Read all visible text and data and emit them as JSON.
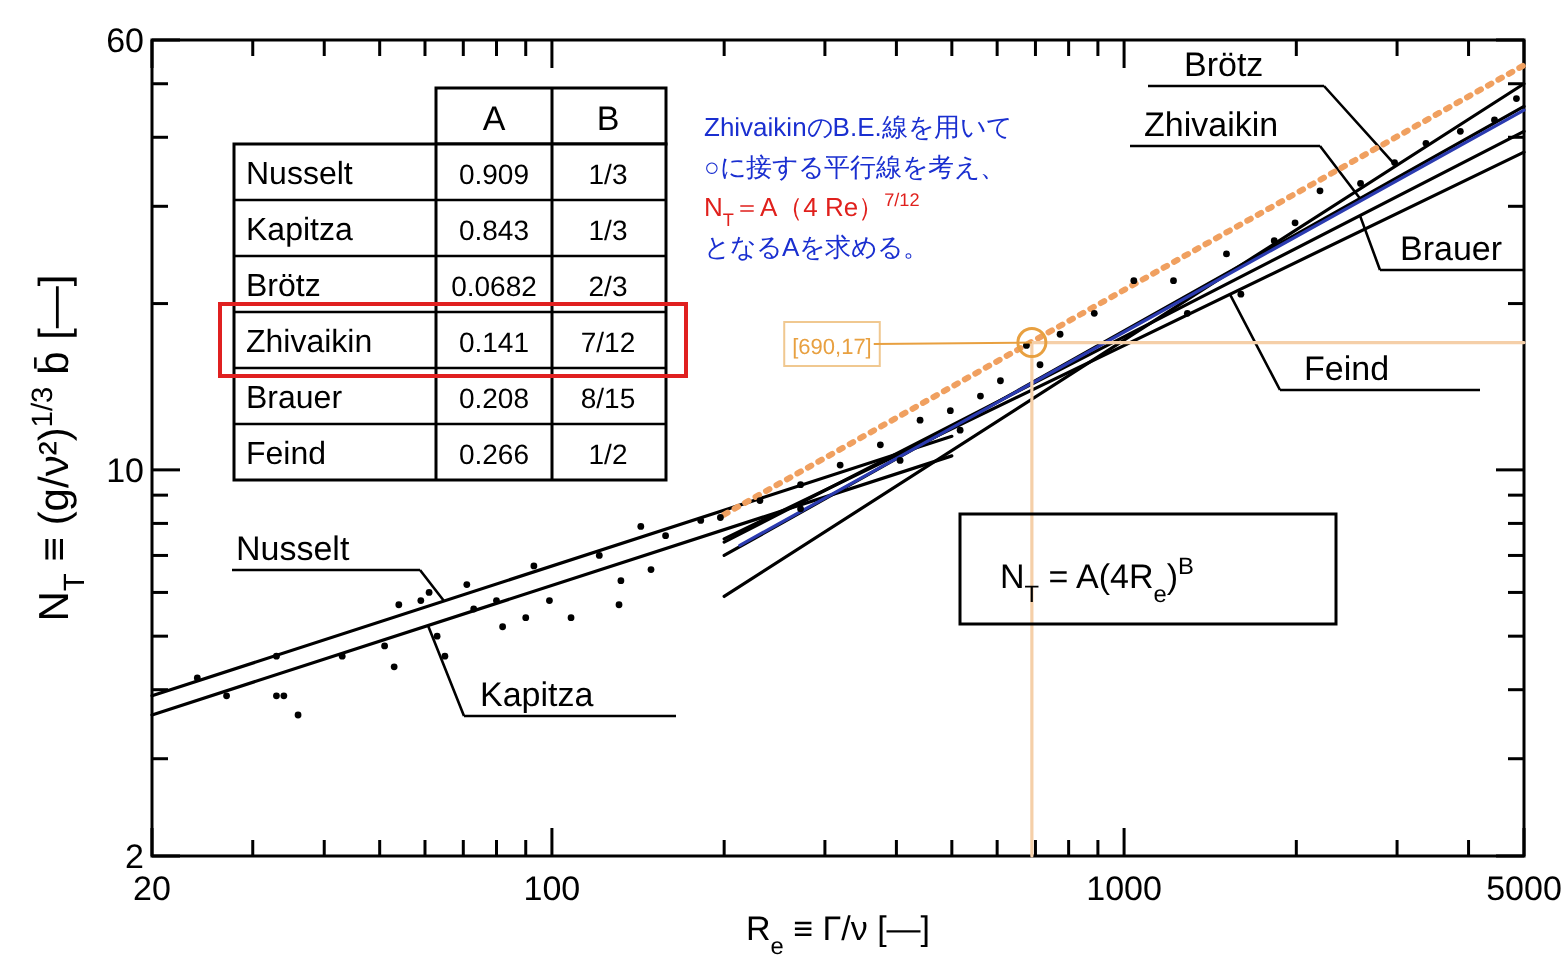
{
  "chart_data": {
    "type": "line",
    "xlabel": "R$_{e}$ ≡ Γ/ν [—]",
    "ylabel": "N$_{T}$ ≡ (g/ν²)$^{1/3}$ b̄ [—]",
    "log": "xy",
    "xlim": [
      20,
      5000
    ],
    "ylim": [
      2,
      60
    ],
    "grid": false,
    "legend": "top right",
    "xticks": [
      20,
      {
        "value": 30,
        "label": null
      },
      {
        "value": 40,
        "label": null
      },
      {
        "value": 50,
        "label": null
      },
      {
        "value": 60,
        "label": null
      },
      {
        "value": 70,
        "label": null
      },
      {
        "value": 80,
        "label": null
      },
      {
        "value": 90,
        "label": null
      },
      100,
      {
        "value": 200,
        "label": null
      },
      {
        "value": 300,
        "label": null
      },
      {
        "value": 400,
        "label": null
      },
      {
        "value": 500,
        "label": null
      },
      {
        "value": 600,
        "label": null
      },
      {
        "value": 700,
        "label": null
      },
      {
        "value": 800,
        "label": null
      },
      {
        "value": 900,
        "label": null
      },
      1000,
      {
        "value": 2000,
        "label": null
      },
      {
        "value": 3000,
        "label": null
      },
      {
        "value": 4000,
        "label": null
      },
      5000
    ],
    "yticks": [
      2,
      {
        "value": 3,
        "label": null
      },
      {
        "value": 4,
        "label": null
      },
      {
        "value": 5,
        "label": null
      },
      {
        "value": 6,
        "label": null
      },
      {
        "value": 7,
        "label": null
      },
      {
        "value": 8,
        "label": null
      },
      {
        "value": 9,
        "label": null
      },
      10,
      {
        "value": 20,
        "label": null
      },
      {
        "value": 30,
        "label": null
      },
      {
        "value": 40,
        "label": null
      },
      {
        "value": 50,
        "label": null
      },
      60
    ],
    "series": [
      {
        "name": "Nusselt",
        "color": "#000000",
        "x": [
          20,
          500
        ],
        "values": [
          3.9,
          11.5
        ]
      },
      {
        "name": "Kapitza",
        "color": "#000000",
        "x": [
          20,
          500
        ],
        "values": [
          3.6,
          10.6
        ]
      },
      {
        "name": "Brötz",
        "color": "#000000",
        "x": [
          200,
          5000
        ],
        "values": [
          5.9,
          50
        ]
      },
      {
        "name": "Zhivaikin",
        "color": "#000000",
        "x": [
          200,
          5000
        ],
        "values": [
          7,
          45.5
        ]
      },
      {
        "name": "Brauer",
        "color": "#000000",
        "x": [
          200,
          5000
        ],
        "values": [
          7.4,
          41
        ]
      },
      {
        "name": "Feind",
        "color": "#000000",
        "x": [
          200,
          5000
        ],
        "values": [
          7.5,
          37.6
        ]
      },
      {
        "color": "#2b3bb0",
        "x": [
          213,
          5000
        ],
        "values": [
          7.3,
          44.8
        ]
      },
      {
        "color": "#f0a060",
        "line_style": "dotted",
        "x": [
          200,
          5000
        ],
        "values": [
          8.3,
          54
        ]
      },
      {
        "color": "#f5cfa8",
        "x": [
          690,
          690,
          5000
        ],
        "values": [
          2,
          17,
          17
        ]
      },
      {
        "type": "scatter",
        "marker": "circle",
        "color": "#000000",
        "x": [
          24,
          27,
          33,
          33,
          34,
          36,
          43,
          51,
          53,
          54,
          59,
          61,
          63,
          65,
          71,
          73,
          80,
          82,
          90,
          93,
          99,
          108,
          121,
          132,
          131,
          143,
          149,
          158,
          182,
          197,
          231,
          272,
          272,
          319,
          375,
          406,
          440,
          497,
          517,
          561,
          608,
          675,
          713,
          773,
          887,
          1040,
          1220,
          1290,
          1510,
          1600,
          1830,
          1990,
          2200,
          2590,
          2970,
          3370,
          3870,
          4440,
          4850
        ],
        "values": [
          4.2,
          3.9,
          4.6,
          3.9,
          3.9,
          3.6,
          4.6,
          4.8,
          4.4,
          5.7,
          5.8,
          6.0,
          5.0,
          4.6,
          6.2,
          5.6,
          5.8,
          5.2,
          5.4,
          6.7,
          5.8,
          5.4,
          7.0,
          6.3,
          5.7,
          7.9,
          6.6,
          7.6,
          8.1,
          8.2,
          8.8,
          9.4,
          8.5,
          10.2,
          11.1,
          10.4,
          12.3,
          12.8,
          11.8,
          13.6,
          14.5,
          16.8,
          15.5,
          17.6,
          19.2,
          22,
          22,
          19.2,
          24.6,
          20.8,
          26,
          28,
          32,
          33,
          36,
          39,
          41,
          43,
          47
        ]
      }
    ],
    "annotations": [
      {
        "text": "[690,17]",
        "x": 690,
        "y": 17
      },
      "ZhivaikinのB.E.線を用いて",
      "○に接する平行線を考え、",
      "N$_{T}$＝A（4 Re）$^{7/12}$",
      "となるAを求める。",
      "N$_{T}$ = A(4R$_{e}$)$^{B}$",
      "A",
      "B",
      "Nusselt",
      "0.909",
      "1/3",
      "Kapitza",
      "0.843",
      "1/3",
      "Brötz",
      "0.0682",
      "2/3",
      "Zhivaikin",
      "0.141",
      "7/12",
      "Brauer",
      "0.208",
      "8/15",
      "Feind",
      "0.266",
      "1/2"
    ]
  }
}
